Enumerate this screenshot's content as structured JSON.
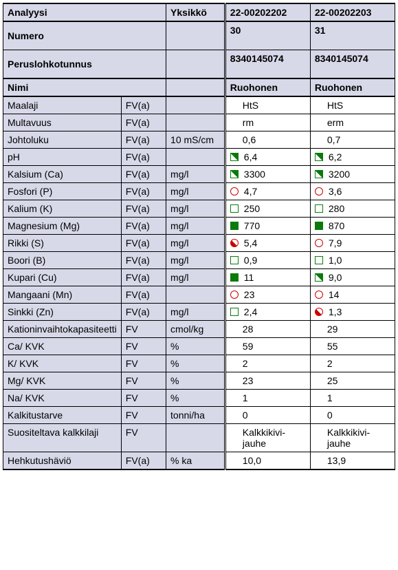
{
  "colors": {
    "header_bg": "#d7d8e8",
    "value_bg": "#ffffff",
    "border": "#000000",
    "green": "#0a7a0a",
    "red": "#cc0000",
    "text": "#000000"
  },
  "font": {
    "family": "Arial, Helvetica, sans-serif",
    "size_pt": 11,
    "header_weight": "bold"
  },
  "marker_legend": {
    "green-full": "filled green square",
    "green-open": "open green square",
    "green-diag": "green square, upper-right half filled",
    "red-open": "open red circle",
    "red-half": "red circle, lower-left half filled"
  },
  "columns": {
    "analyysi": "Analyysi",
    "yksikko": "Yksikkö",
    "samples": [
      "22-00202202",
      "22-00202203"
    ]
  },
  "header_rows": [
    {
      "label": "Numero",
      "c2": "",
      "c3": "",
      "s0": "30",
      "s1": "31"
    },
    {
      "label": "Peruslohkotunnus",
      "c2": "",
      "c3": "",
      "s0": "8340145074",
      "s1": "8340145074"
    },
    {
      "label": "Nimi",
      "c2": "",
      "c3": "",
      "s0": "Ruohonen",
      "s1": "Ruohonen"
    }
  ],
  "rows": [
    {
      "name": "Maalaji",
      "c2": "FV(a)",
      "unit": "",
      "s0": {
        "m": null,
        "v": "HtS",
        "pad": true
      },
      "s1": {
        "m": null,
        "v": "HtS",
        "pad": true
      }
    },
    {
      "name": "Multavuus",
      "c2": "FV(a)",
      "unit": "",
      "s0": {
        "m": null,
        "v": "rm",
        "pad": true
      },
      "s1": {
        "m": null,
        "v": "erm",
        "pad": true
      }
    },
    {
      "name": "Johtoluku",
      "c2": "FV(a)",
      "unit": "10 mS/cm",
      "s0": {
        "m": null,
        "v": "0,6",
        "pad": true
      },
      "s1": {
        "m": null,
        "v": "0,7",
        "pad": true
      }
    },
    {
      "name": "pH",
      "c2": "FV(a)",
      "unit": "",
      "s0": {
        "m": "green-diag",
        "v": "6,4"
      },
      "s1": {
        "m": "green-diag",
        "v": "6,2"
      }
    },
    {
      "name": "Kalsium (Ca)",
      "c2": "FV(a)",
      "unit": "mg/l",
      "s0": {
        "m": "green-diag",
        "v": "3300"
      },
      "s1": {
        "m": "green-diag",
        "v": "3200"
      }
    },
    {
      "name": "Fosfori (P)",
      "c2": "FV(a)",
      "unit": "mg/l",
      "s0": {
        "m": "red-open",
        "v": "4,7"
      },
      "s1": {
        "m": "red-open",
        "v": "3,6"
      }
    },
    {
      "name": "Kalium (K)",
      "c2": "FV(a)",
      "unit": "mg/l",
      "s0": {
        "m": "green-open",
        "v": "250"
      },
      "s1": {
        "m": "green-open",
        "v": "280"
      }
    },
    {
      "name": "Magnesium (Mg)",
      "c2": "FV(a)",
      "unit": "mg/l",
      "s0": {
        "m": "green-full",
        "v": "770"
      },
      "s1": {
        "m": "green-full",
        "v": "870"
      }
    },
    {
      "name": "Rikki (S)",
      "c2": "FV(a)",
      "unit": "mg/l",
      "s0": {
        "m": "red-half",
        "v": "5,4"
      },
      "s1": {
        "m": "red-open",
        "v": "7,9"
      }
    },
    {
      "name": "Boori (B)",
      "c2": "FV(a)",
      "unit": "mg/l",
      "s0": {
        "m": "green-open",
        "v": "0,9"
      },
      "s1": {
        "m": "green-open",
        "v": "1,0"
      }
    },
    {
      "name": "Kupari (Cu)",
      "c2": "FV(a)",
      "unit": "mg/l",
      "s0": {
        "m": "green-full",
        "v": "11"
      },
      "s1": {
        "m": "green-diag",
        "v": "9,0"
      }
    },
    {
      "name": "Mangaani (Mn)",
      "c2": "FV(a)",
      "unit": "",
      "s0": {
        "m": "red-open",
        "v": "23"
      },
      "s1": {
        "m": "red-open",
        "v": "14"
      }
    },
    {
      "name": "Sinkki (Zn)",
      "c2": "FV(a)",
      "unit": "mg/l",
      "s0": {
        "m": "green-open",
        "v": "2,4"
      },
      "s1": {
        "m": "red-half",
        "v": "1,3"
      }
    },
    {
      "name": "Kationinvaihtokapasiteetti",
      "c2": "FV",
      "unit": "cmol/kg",
      "s0": {
        "m": null,
        "v": "28",
        "pad": true
      },
      "s1": {
        "m": null,
        "v": "29",
        "pad": true
      }
    },
    {
      "name": "Ca/ KVK",
      "c2": "FV",
      "unit": "%",
      "s0": {
        "m": null,
        "v": "59",
        "pad": true
      },
      "s1": {
        "m": null,
        "v": "55",
        "pad": true
      }
    },
    {
      "name": "K/ KVK",
      "c2": "FV",
      "unit": "%",
      "s0": {
        "m": null,
        "v": "2",
        "pad": true
      },
      "s1": {
        "m": null,
        "v": "2",
        "pad": true
      }
    },
    {
      "name": "Mg/ KVK",
      "c2": "FV",
      "unit": "%",
      "s0": {
        "m": null,
        "v": "23",
        "pad": true
      },
      "s1": {
        "m": null,
        "v": "25",
        "pad": true
      }
    },
    {
      "name": "Na/ KVK",
      "c2": "FV",
      "unit": "%",
      "s0": {
        "m": null,
        "v": "1",
        "pad": true
      },
      "s1": {
        "m": null,
        "v": "1",
        "pad": true
      }
    },
    {
      "name": "Kalkitustarve",
      "c2": "FV",
      "unit": "tonni/ha",
      "s0": {
        "m": null,
        "v": "0",
        "pad": true
      },
      "s1": {
        "m": null,
        "v": "0",
        "pad": true
      }
    },
    {
      "name": "Suositeltava kalkkilaji",
      "c2": "FV",
      "unit": "",
      "s0": {
        "m": null,
        "v": "Kalkkikivi-jauhe",
        "pad": true
      },
      "s1": {
        "m": null,
        "v": "Kalkkikivi-jauhe",
        "pad": true
      }
    },
    {
      "name": "Hehkutushäviö",
      "c2": "FV(a)",
      "unit": "% ka",
      "s0": {
        "m": null,
        "v": "10,0",
        "pad": true
      },
      "s1": {
        "m": null,
        "v": "13,9",
        "pad": true
      }
    }
  ]
}
